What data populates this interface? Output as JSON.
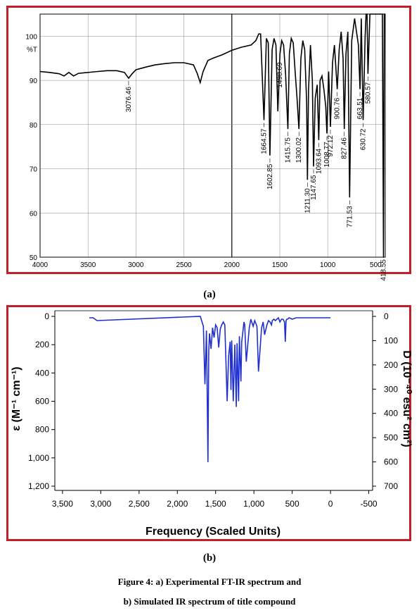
{
  "captions": {
    "panel_a": "(a)",
    "panel_b": "(b)",
    "figure_line1": "Figure 4: a) Experimental FT-IR spectrum and",
    "figure_line2": "b) Simulated IR spectrum of title compound"
  },
  "colors": {
    "frame": "#c0202a",
    "spectrum_a": "#000000",
    "spectrum_b": "#1f2fd0",
    "grid": "#888888"
  },
  "chart_data": [
    {
      "type": "line",
      "panel": "a",
      "ylabel": "%T",
      "xlim": [
        4000,
        400
      ],
      "ylim": [
        50,
        105
      ],
      "x_ticks": [
        4000,
        3500,
        3000,
        2500,
        2000,
        1500,
        1000,
        500
      ],
      "y_ticks": [
        50,
        60,
        70,
        80,
        90,
        100
      ],
      "grid": true,
      "series": [
        {
          "x": [
            4000,
            3900,
            3800,
            3750,
            3700,
            3650,
            3600,
            3500,
            3400,
            3300,
            3200,
            3120,
            3076.46,
            3040,
            3000,
            2900,
            2800,
            2700,
            2600,
            2500,
            2400,
            2360,
            2330,
            2300,
            2250,
            2200,
            2100,
            2000,
            1900,
            1800,
            1750,
            1720,
            1700,
            1664.57,
            1640,
            1620,
            1602.85,
            1580,
            1560,
            1540,
            1520,
            1498.69,
            1480,
            1460,
            1440,
            1415.75,
            1400,
            1380,
            1360,
            1340,
            1320,
            1300.02,
            1280,
            1260,
            1240,
            1220,
            1211.3,
            1200,
            1180,
            1160,
            1147.65,
            1130,
            1110,
            1093.64,
            1080,
            1060,
            1040,
            1020,
            1008.77,
            990,
            972.12,
            950,
            930,
            900.76,
            880,
            860,
            840,
            827.46,
            810,
            790,
            771.53,
            750,
            720,
            700,
            680,
            663.51,
            650,
            630.72,
            610,
            600,
            590,
            580.57,
            560,
            540,
            520,
            500,
            470,
            440,
            430,
            418.55,
            410,
            400
          ],
          "y": [
            92,
            91.8,
            91.5,
            91,
            91.8,
            91,
            91.6,
            91.8,
            92,
            92.2,
            92.2,
            91.8,
            90.5,
            91.5,
            92.4,
            93,
            93.5,
            93.8,
            94,
            94,
            93.5,
            91.5,
            89.5,
            92,
            94.5,
            95,
            95.8,
            96.8,
            97.5,
            98,
            99,
            100.5,
            100.5,
            81,
            99.5,
            98.5,
            73,
            97,
            99.5,
            98,
            83,
            96,
            99,
            98,
            91.5,
            79,
            96,
            99.5,
            98.5,
            92,
            86,
            79,
            95,
            99,
            97,
            85,
            67.5,
            88,
            98,
            90,
            70.5,
            86,
            89,
            76.5,
            90,
            91,
            88,
            84,
            78,
            92,
            79.5,
            94,
            98,
            88,
            97,
            101,
            95,
            79,
            96,
            101,
            63.5,
            99,
            104,
            101,
            98,
            88,
            104,
            81,
            100,
            106,
            105,
            91.5,
            106,
            107,
            106,
            106,
            105,
            105,
            105,
            42,
            105,
            105
          ]
        }
      ],
      "peak_labels": [
        "3076.46",
        "1664.57",
        "1602.85",
        "1498.69",
        "1415.75",
        "1300.02",
        "1211.30",
        "1147.65",
        "1093.64",
        "1008.77",
        "972.12",
        "900.76",
        "827.46",
        "771.53",
        "663.51",
        "630.72",
        "580.57",
        "418.55"
      ]
    },
    {
      "type": "line",
      "panel": "b",
      "xlabel": "Frequency (Scaled Units)",
      "ylabel": "ε (M⁻¹ cm⁻¹)",
      "y2label": "D (10⁻⁴⁰ esu² cm²)",
      "xlim": [
        3600,
        -550
      ],
      "ylim": [
        0,
        1250
      ],
      "x_ticks": [
        "3,500",
        "3,000",
        "2,500",
        "2,000",
        "1,500",
        "1,000",
        "500",
        "0",
        "-500"
      ],
      "y_ticks": [
        "0",
        "200",
        "400",
        "600",
        "800",
        "1,000",
        "1,200"
      ],
      "y2_ticks": [
        "0",
        "100",
        "200",
        "300",
        "400",
        "500",
        "600",
        "700"
      ],
      "grid": false,
      "series": [
        {
          "x": [
            3150,
            3100,
            3050,
            1700,
            1660,
            1640,
            1620,
            1600,
            1590,
            1580,
            1560,
            1540,
            1520,
            1500,
            1480,
            1460,
            1440,
            1420,
            1400,
            1380,
            1350,
            1330,
            1310,
            1300,
            1290,
            1270,
            1250,
            1230,
            1220,
            1200,
            1190,
            1170,
            1160,
            1150,
            1130,
            1120,
            1100,
            1060,
            1040,
            1010,
            990,
            960,
            940,
            900,
            880,
            860,
            830,
            810,
            790,
            770,
            760,
            740,
            720,
            700,
            680,
            660,
            640,
            620,
            600,
            590,
            580,
            570,
            560,
            540,
            500,
            450,
            400,
            300,
            200,
            100,
            0
          ],
          "y": [
            10,
            10,
            30,
            0,
            70,
            480,
            100,
            1030,
            250,
            120,
            230,
            80,
            150,
            60,
            80,
            220,
            90,
            60,
            40,
            60,
            600,
            280,
            180,
            520,
            170,
            600,
            200,
            640,
            190,
            600,
            140,
            460,
            180,
            140,
            40,
            60,
            320,
            80,
            20,
            70,
            30,
            70,
            390,
            80,
            40,
            130,
            60,
            30,
            40,
            60,
            30,
            20,
            30,
            20,
            10,
            40,
            20,
            20,
            40,
            180,
            30,
            20,
            20,
            10,
            20,
            10,
            10,
            10,
            10,
            10,
            10
          ]
        }
      ]
    }
  ]
}
